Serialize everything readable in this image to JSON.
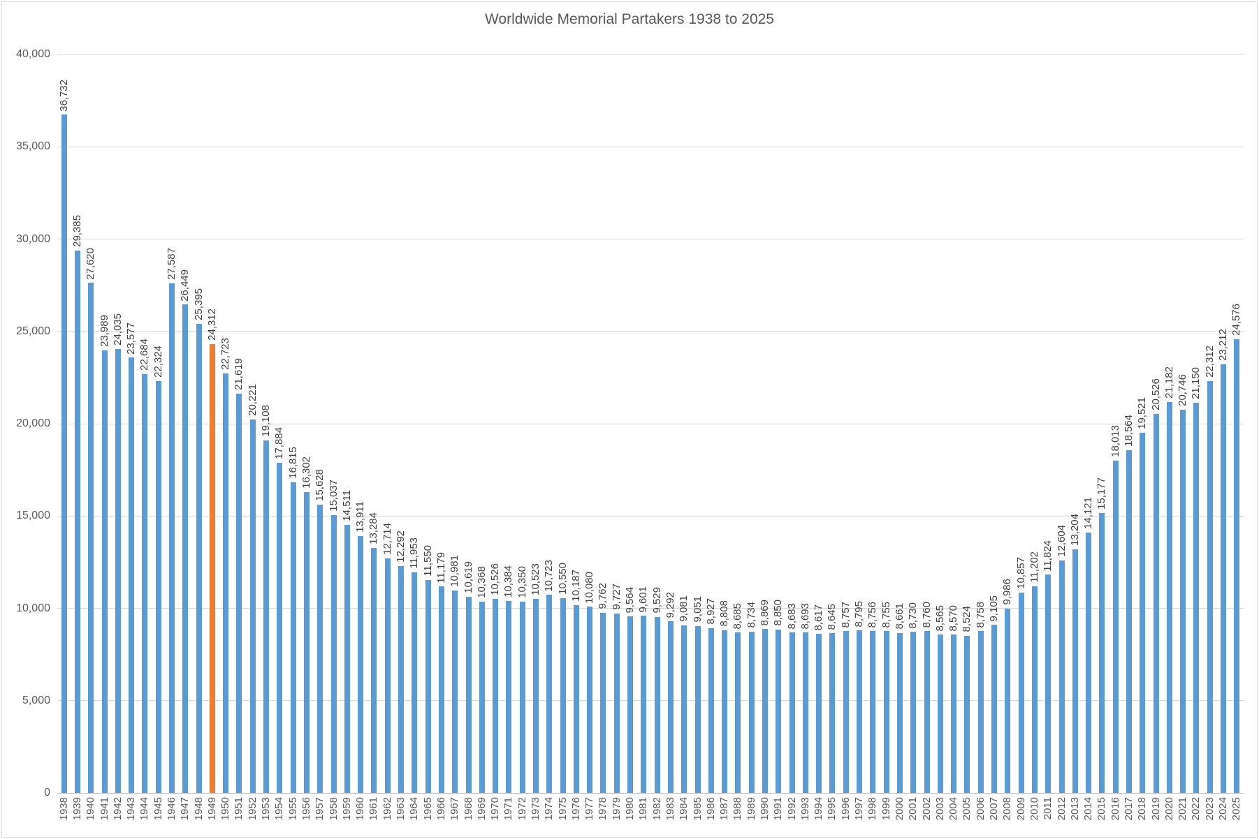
{
  "chart_data": {
    "type": "bar",
    "title": "Worldwide Memorial Partakers 1938 to 2025",
    "xlabel": "",
    "ylabel": "",
    "ylim": [
      0,
      40000
    ],
    "grid": true,
    "legend": false,
    "bar_color": "#5B9BD5",
    "highlight_category": "1949",
    "highlight_color": "#ED7D31",
    "category_label_rotation": "vertical-bottom-to-top",
    "data_label_rotation": "vertical-bottom-to-top",
    "y_ticks": [
      {
        "value": 0,
        "label": "0"
      },
      {
        "value": 5000,
        "label": "5,000"
      },
      {
        "value": 10000,
        "label": "10,000"
      },
      {
        "value": 15000,
        "label": "15,000"
      },
      {
        "value": 20000,
        "label": "20,000"
      },
      {
        "value": 25000,
        "label": "25,000"
      },
      {
        "value": 30000,
        "label": "30,000"
      },
      {
        "value": 35000,
        "label": "35,000"
      },
      {
        "value": 40000,
        "label": "40,000"
      }
    ],
    "categories": [
      "1938",
      "1939",
      "1940",
      "1941",
      "1942",
      "1943",
      "1944",
      "1945",
      "1946",
      "1947",
      "1948",
      "1949",
      "1950",
      "1951",
      "1952",
      "1953",
      "1954",
      "1955",
      "1956",
      "1957",
      "1958",
      "1959",
      "1960",
      "1961",
      "1962",
      "1963",
      "1964",
      "1965",
      "1966",
      "1967",
      "1968",
      "1969",
      "1970",
      "1971",
      "1972",
      "1973",
      "1974",
      "1975",
      "1976",
      "1977",
      "1978",
      "1979",
      "1980",
      "1981",
      "1982",
      "1983",
      "1984",
      "1985",
      "1986",
      "1987",
      "1988",
      "1989",
      "1990",
      "1991",
      "1992",
      "1993",
      "1994",
      "1995",
      "1996",
      "1997",
      "1998",
      "1999",
      "2000",
      "2001",
      "2002",
      "2003",
      "2004",
      "2005",
      "2006",
      "2007",
      "2008",
      "2009",
      "2010",
      "2011",
      "2012",
      "2013",
      "2014",
      "2015",
      "2016",
      "2017",
      "2018",
      "2019",
      "2020",
      "2021",
      "2022",
      "2023",
      "2024",
      "2025"
    ],
    "values": [
      36732,
      29385,
      27620,
      23989,
      24035,
      23577,
      22684,
      22324,
      27587,
      26449,
      25395,
      24312,
      22723,
      21619,
      20221,
      19108,
      17884,
      16815,
      16302,
      15628,
      15037,
      14511,
      13911,
      13284,
      12714,
      12292,
      11953,
      11550,
      11179,
      10981,
      10619,
      10368,
      10526,
      10384,
      10350,
      10523,
      10723,
      10550,
      10187,
      10080,
      9762,
      9727,
      9564,
      9601,
      9529,
      9292,
      9081,
      9051,
      8927,
      8808,
      8685,
      8734,
      8869,
      8850,
      8683,
      8693,
      8617,
      8645,
      8757,
      8795,
      8756,
      8755,
      8661,
      8730,
      8760,
      8565,
      8570,
      8524,
      8758,
      9105,
      9986,
      10857,
      11202,
      11824,
      12604,
      13204,
      14121,
      15177,
      18013,
      18564,
      19521,
      20526,
      21182,
      20746,
      21150,
      22312,
      23212,
      24576
    ],
    "value_labels": [
      "36,732",
      "29,385",
      "27,620",
      "23,989",
      "24,035",
      "23,577",
      "22,684",
      "22,324",
      "27,587",
      "26,449",
      "25,395",
      "24,312",
      "22,723",
      "21,619",
      "20,221",
      "19,108",
      "17,884",
      "16,815",
      "16,302",
      "15,628",
      "15,037",
      "14,511",
      "13,911",
      "13,284",
      "12,714",
      "12,292",
      "11,953",
      "11,550",
      "11,179",
      "10,981",
      "10,619",
      "10,368",
      "10,526",
      "10,384",
      "10,350",
      "10,523",
      "10,723",
      "10,550",
      "10,187",
      "10,080",
      "9,762",
      "9,727",
      "9,564",
      "9,601",
      "9,529",
      "9,292",
      "9,081",
      "9,051",
      "8,927",
      "8,808",
      "8,685",
      "8,734",
      "8,869",
      "8,850",
      "8,683",
      "8,693",
      "8,617",
      "8,645",
      "8,757",
      "8,795",
      "8,756",
      "8,755",
      "8,661",
      "8,730",
      "8,760",
      "8,565",
      "8,570",
      "8,524",
      "8,758",
      "9,105",
      "9,986",
      "10,857",
      "11,202",
      "11,824",
      "12,604",
      "13,204",
      "14,121",
      "15,177",
      "18,013",
      "18,564",
      "19,521",
      "20,526",
      "21,182",
      "20,746",
      "21,150",
      "22,312",
      "23,212",
      "24,576"
    ]
  },
  "colors": {
    "background": "#FFFFFF",
    "border": "#D9D9D9",
    "gridline": "#D9D9D9",
    "axis_line": "#BFBFBF",
    "title_text": "#595959",
    "axis_text": "#595959",
    "data_label_text": "#404040",
    "bar_blue": "#5B9BD5",
    "bar_orange": "#ED7D31"
  }
}
